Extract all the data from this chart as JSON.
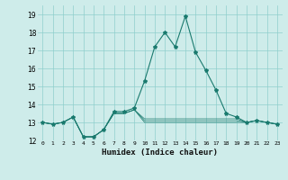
{
  "xlabel": "Humidex (Indice chaleur)",
  "ylabel": "",
  "bg_color": "#ceecea",
  "grid_color": "#8fcfcc",
  "line_color": "#1a7a6e",
  "xlim": [
    -0.5,
    23.5
  ],
  "ylim": [
    12,
    19.5
  ],
  "yticks": [
    12,
    13,
    14,
    15,
    16,
    17,
    18,
    19
  ],
  "xticks": [
    0,
    1,
    2,
    3,
    4,
    5,
    6,
    7,
    8,
    9,
    10,
    11,
    12,
    13,
    14,
    15,
    16,
    17,
    18,
    19,
    20,
    21,
    22,
    23
  ],
  "xtick_labels": [
    "0",
    "1",
    "2",
    "3",
    "4",
    "5",
    "6",
    "7",
    "8",
    "9",
    "10",
    "11",
    "12",
    "13",
    "14",
    "15",
    "16",
    "17",
    "18",
    "19",
    "20",
    "21",
    "22",
    "23"
  ],
  "series": [
    [
      13.0,
      12.9,
      13.0,
      13.3,
      12.2,
      12.2,
      12.6,
      13.6,
      13.6,
      13.8,
      15.3,
      17.2,
      18.0,
      17.2,
      18.9,
      16.9,
      15.9,
      14.8,
      13.5,
      13.3,
      13.0,
      13.1,
      13.0,
      12.9
    ],
    [
      13.0,
      12.9,
      13.0,
      13.3,
      12.2,
      12.2,
      12.6,
      13.5,
      13.5,
      13.7,
      13.2,
      13.2,
      13.2,
      13.2,
      13.2,
      13.2,
      13.2,
      13.2,
      13.2,
      13.2,
      13.0,
      13.1,
      13.0,
      12.9
    ],
    [
      13.0,
      12.9,
      13.0,
      13.3,
      12.2,
      12.2,
      12.6,
      13.5,
      13.5,
      13.7,
      13.1,
      13.1,
      13.1,
      13.1,
      13.1,
      13.1,
      13.1,
      13.1,
      13.1,
      13.1,
      13.0,
      13.1,
      13.0,
      12.9
    ],
    [
      13.0,
      12.9,
      13.0,
      13.3,
      12.2,
      12.2,
      12.6,
      13.5,
      13.5,
      13.7,
      13.0,
      13.0,
      13.0,
      13.0,
      13.0,
      13.0,
      13.0,
      13.0,
      13.0,
      13.0,
      13.0,
      13.1,
      13.0,
      12.9
    ]
  ]
}
